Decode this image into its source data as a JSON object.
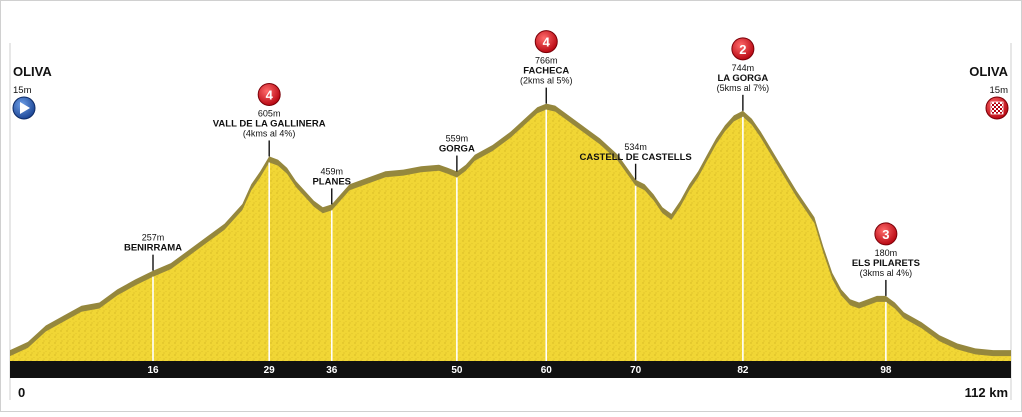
{
  "start": {
    "name": "OLIVA",
    "altitude": "15m",
    "km_label": "0"
  },
  "finish": {
    "name": "OLIVA",
    "altitude": "15m",
    "km_label": "112 km"
  },
  "chart_data": {
    "type": "area",
    "x_unit": "km",
    "y_unit": "m",
    "xlim": [
      0,
      112
    ],
    "ylim": [
      0,
      1100
    ],
    "profile": [
      [
        0,
        15
      ],
      [
        2,
        40
      ],
      [
        4,
        90
      ],
      [
        6,
        120
      ],
      [
        8,
        150
      ],
      [
        10,
        160
      ],
      [
        12,
        200
      ],
      [
        14,
        230
      ],
      [
        16,
        257
      ],
      [
        18,
        280
      ],
      [
        20,
        320
      ],
      [
        22,
        360
      ],
      [
        24,
        400
      ],
      [
        26,
        460
      ],
      [
        27,
        520
      ],
      [
        28,
        560
      ],
      [
        29,
        605
      ],
      [
        30,
        595
      ],
      [
        31,
        570
      ],
      [
        32,
        530
      ],
      [
        33,
        500
      ],
      [
        34,
        470
      ],
      [
        35,
        450
      ],
      [
        36,
        459
      ],
      [
        37,
        490
      ],
      [
        38,
        520
      ],
      [
        40,
        540
      ],
      [
        42,
        560
      ],
      [
        44,
        565
      ],
      [
        46,
        575
      ],
      [
        48,
        580
      ],
      [
        49,
        570
      ],
      [
        50,
        559
      ],
      [
        51,
        580
      ],
      [
        52,
        610
      ],
      [
        54,
        640
      ],
      [
        56,
        680
      ],
      [
        58,
        730
      ],
      [
        59,
        755
      ],
      [
        60,
        766
      ],
      [
        61,
        760
      ],
      [
        62,
        740
      ],
      [
        64,
        700
      ],
      [
        66,
        660
      ],
      [
        68,
        610
      ],
      [
        70,
        534
      ],
      [
        71,
        520
      ],
      [
        72,
        490
      ],
      [
        73,
        450
      ],
      [
        74,
        430
      ],
      [
        75,
        470
      ],
      [
        76,
        520
      ],
      [
        77,
        560
      ],
      [
        78,
        610
      ],
      [
        79,
        660
      ],
      [
        80,
        700
      ],
      [
        81,
        730
      ],
      [
        82,
        744
      ],
      [
        83,
        720
      ],
      [
        84,
        680
      ],
      [
        86,
        590
      ],
      [
        88,
        500
      ],
      [
        90,
        420
      ],
      [
        91,
        330
      ],
      [
        92,
        250
      ],
      [
        93,
        200
      ],
      [
        94,
        170
      ],
      [
        95,
        160
      ],
      [
        96,
        170
      ],
      [
        97,
        180
      ],
      [
        98,
        180
      ],
      [
        99,
        160
      ],
      [
        100,
        130
      ],
      [
        102,
        100
      ],
      [
        104,
        60
      ],
      [
        106,
        35
      ],
      [
        108,
        20
      ],
      [
        110,
        15
      ],
      [
        112,
        15
      ]
    ],
    "km_ticks": [
      16,
      29,
      36,
      50,
      60,
      70,
      82,
      98
    ],
    "points": [
      {
        "km": 16,
        "lines": [
          "257m",
          "BENIRRAMA"
        ]
      },
      {
        "km": 29,
        "lines": [
          "605m",
          "VALL DE LA GALLINERA",
          "(4kms al 4%)"
        ],
        "category": "4"
      },
      {
        "km": 36,
        "lines": [
          "459m",
          "PLANES"
        ]
      },
      {
        "km": 50,
        "lines": [
          "559m",
          "GORGA"
        ]
      },
      {
        "km": 60,
        "lines": [
          "766m",
          "FACHECA",
          "(2kms al 5%)"
        ],
        "category": "4"
      },
      {
        "km": 70,
        "lines": [
          "534m",
          "CASTELL DE CASTELLS"
        ]
      },
      {
        "km": 82,
        "lines": [
          "744m",
          "LA GORGA",
          "(5kms al 7%)"
        ],
        "category": "2"
      },
      {
        "km": 98,
        "lines": [
          "180m",
          "ELS PILARETS",
          "(3kms al 4%)"
        ],
        "category": "3"
      }
    ]
  }
}
